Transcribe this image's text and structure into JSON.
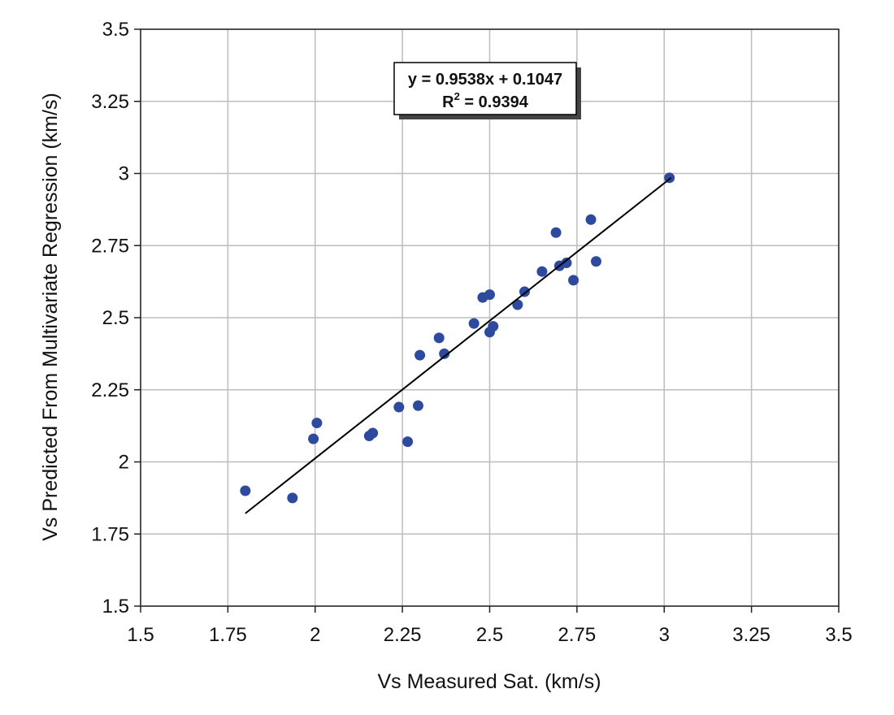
{
  "chart_data": {
    "type": "scatter",
    "title": "",
    "xlabel": "Vs Measured Sat. (km/s)",
    "ylabel": "Vs Predicted From Multivariate Regression (km/s)",
    "xlim": [
      1.5,
      3.5
    ],
    "ylim": [
      1.5,
      3.5
    ],
    "x_ticks": [
      "1.5",
      "1.75",
      "2",
      "2.25",
      "2.5",
      "2.75",
      "3",
      "3.25",
      "3.5"
    ],
    "y_ticks": [
      "1.5",
      "1.75",
      "2",
      "2.25",
      "2.5",
      "2.75",
      "3",
      "3.25",
      "3.5"
    ],
    "grid": true,
    "legend": "none",
    "marker_color": "#2e4a9e",
    "trendline": {
      "slope": 0.9538,
      "intercept": 0.1047,
      "x_range": [
        1.8,
        3.02
      ],
      "equation_label": "y = 0.9538x + 0.1047",
      "r2_prefix": "R",
      "r2_sup": "2",
      "r2_value": " = 0.9394"
    },
    "points": [
      {
        "x": 1.8,
        "y": 1.9
      },
      {
        "x": 1.935,
        "y": 1.875
      },
      {
        "x": 1.995,
        "y": 2.08
      },
      {
        "x": 2.005,
        "y": 2.135
      },
      {
        "x": 2.155,
        "y": 2.09
      },
      {
        "x": 2.165,
        "y": 2.1
      },
      {
        "x": 2.24,
        "y": 2.19
      },
      {
        "x": 2.265,
        "y": 2.07
      },
      {
        "x": 2.295,
        "y": 2.195
      },
      {
        "x": 2.3,
        "y": 2.37
      },
      {
        "x": 2.355,
        "y": 2.43
      },
      {
        "x": 2.37,
        "y": 2.375
      },
      {
        "x": 2.455,
        "y": 2.48
      },
      {
        "x": 2.48,
        "y": 2.57
      },
      {
        "x": 2.5,
        "y": 2.58
      },
      {
        "x": 2.5,
        "y": 2.45
      },
      {
        "x": 2.51,
        "y": 2.47
      },
      {
        "x": 2.58,
        "y": 2.545
      },
      {
        "x": 2.6,
        "y": 2.59
      },
      {
        "x": 2.65,
        "y": 2.66
      },
      {
        "x": 2.69,
        "y": 2.795
      },
      {
        "x": 2.7,
        "y": 2.68
      },
      {
        "x": 2.72,
        "y": 2.69
      },
      {
        "x": 2.74,
        "y": 2.63
      },
      {
        "x": 2.79,
        "y": 2.84
      },
      {
        "x": 2.805,
        "y": 2.695
      },
      {
        "x": 3.015,
        "y": 2.985
      }
    ]
  }
}
